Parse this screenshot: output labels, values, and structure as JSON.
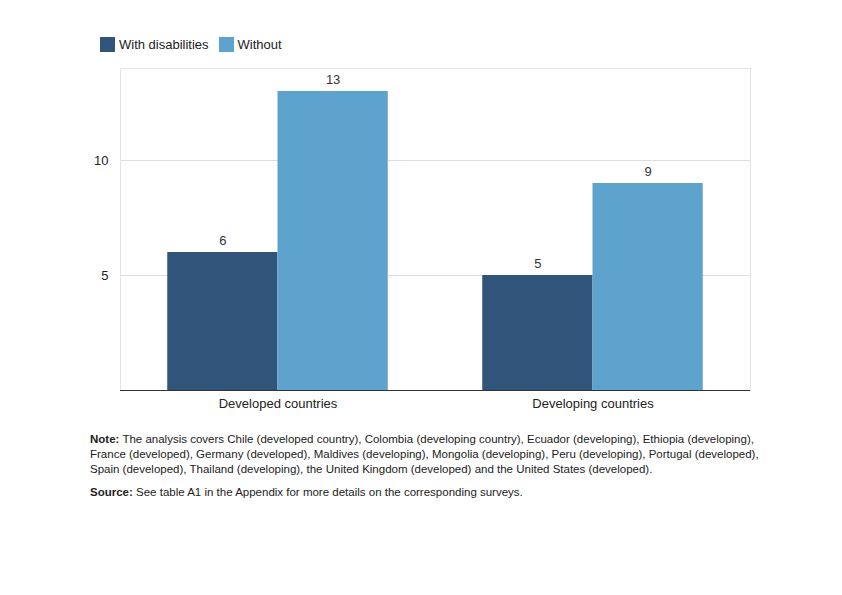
{
  "chart_data": {
    "type": "bar",
    "categories": [
      "Developed countries",
      "Developing countries"
    ],
    "series": [
      {
        "name": "With disabilities",
        "color": "#31547a",
        "values": [
          6,
          5
        ]
      },
      {
        "name": "Without",
        "color": "#5ea3cd",
        "values": [
          13,
          9
        ]
      }
    ],
    "ylim": [
      0,
      14
    ],
    "yticks": [
      5,
      10
    ],
    "grid": true,
    "data_labels": true,
    "legend": "top-left",
    "note": {
      "label": "Note:",
      "text": "The analysis covers Chile (developed country), Colombia (developing country), Ecuador (developing), Ethiopia (developing), France (developed), Germany (developed), Maldives (developing), Mongolia (developing), Peru (developing), Portugal (developed), Spain (developed), Thailand (developing), the United Kingdom (developed) and the United States (developed)."
    },
    "source": {
      "label": "Source:",
      "text": "See table A1 in the Appendix for more details on the corresponding surveys."
    }
  }
}
